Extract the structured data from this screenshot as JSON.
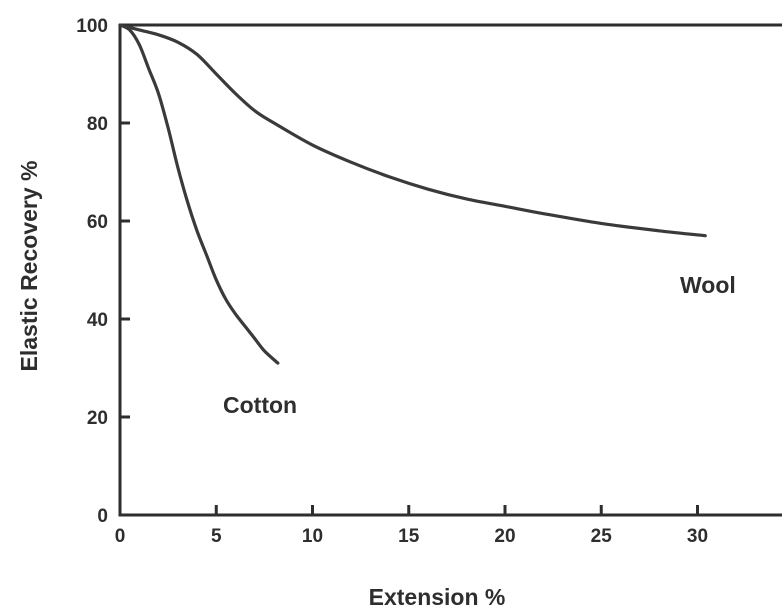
{
  "chart_data": {
    "type": "line",
    "xlabel": "Extension %",
    "ylabel": "Elastic Recovery %",
    "xlim": [
      0,
      35
    ],
    "ylim": [
      0,
      100
    ],
    "x_ticks": [
      0,
      5,
      10,
      15,
      20,
      25,
      30
    ],
    "y_ticks": [
      0,
      20,
      40,
      60,
      80,
      100
    ],
    "grid": false,
    "legend": "none (series labeled directly on plot)",
    "series": [
      {
        "name": "Cotton",
        "x": [
          0,
          0.5,
          1,
          1.5,
          2,
          2.5,
          3,
          3.5,
          4,
          4.5,
          5,
          5.5,
          6,
          6.5,
          7,
          7.5,
          8.2
        ],
        "y": [
          100,
          99,
          96,
          91,
          86,
          79,
          71,
          64,
          58,
          53,
          48,
          44,
          41,
          38.5,
          36,
          33.5,
          31
        ]
      },
      {
        "name": "Wool",
        "x": [
          0,
          1,
          2,
          3,
          4,
          5,
          6,
          7,
          8,
          10,
          12,
          14,
          16,
          18,
          20,
          22,
          25,
          28,
          30.4
        ],
        "y": [
          100,
          99,
          98,
          96.5,
          94,
          90,
          86,
          82.5,
          80,
          75.5,
          72,
          69,
          66.5,
          64.5,
          63,
          61.5,
          59.5,
          58,
          57
        ]
      }
    ],
    "reference_line": {
      "y": 100,
      "description": "full recovery line"
    }
  },
  "labels": {
    "cotton": "Cotton",
    "wool": "Wool"
  }
}
